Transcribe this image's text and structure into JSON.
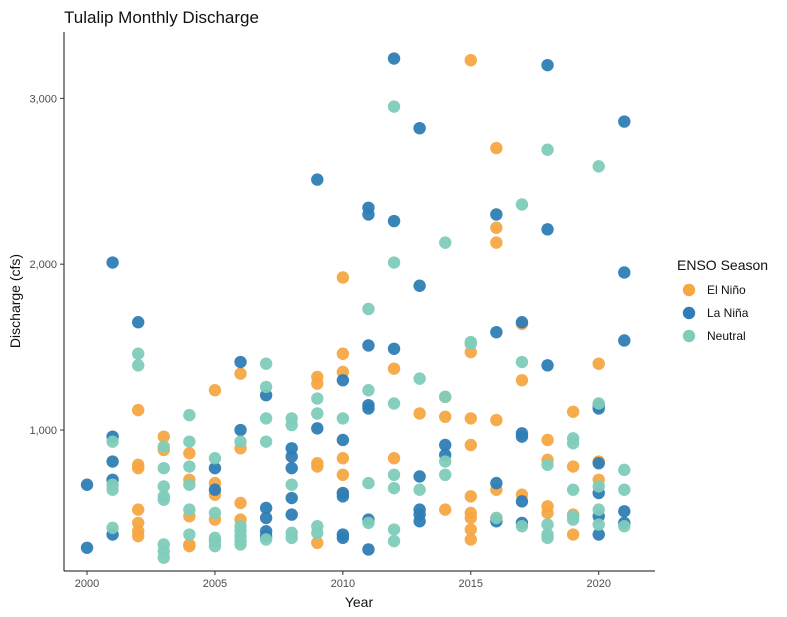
{
  "chart_data": {
    "type": "scatter",
    "title": "Tulalip Monthly Discharge",
    "xlabel": "Year",
    "ylabel": "Discharge (cfs)",
    "xlim": [
      1999.1,
      2022.2
    ],
    "ylim": [
      150,
      3400
    ],
    "xticks": [
      2000,
      2005,
      2010,
      2015,
      2020
    ],
    "xtick_labels": [
      "2000",
      "2005",
      "2010",
      "2015",
      "2020"
    ],
    "yticks": [
      1000,
      2000,
      3000
    ],
    "ytick_labels": [
      "1,000",
      "2,000",
      "3,000"
    ],
    "grid": false,
    "legend": {
      "title": "ENSO Season",
      "position": "right"
    },
    "series": [
      {
        "name": "El Niño",
        "color": "#F5A742",
        "points": [
          [
            2002,
            1120
          ],
          [
            2002,
            790
          ],
          [
            2002,
            770
          ],
          [
            2002,
            520
          ],
          [
            2002,
            440
          ],
          [
            2002,
            390
          ],
          [
            2002,
            360
          ],
          [
            2003,
            960
          ],
          [
            2003,
            880
          ],
          [
            2004,
            860
          ],
          [
            2004,
            700
          ],
          [
            2004,
            480
          ],
          [
            2004,
            310
          ],
          [
            2004,
            300
          ],
          [
            2005,
            1240
          ],
          [
            2005,
            680
          ],
          [
            2005,
            610
          ],
          [
            2005,
            460
          ],
          [
            2006,
            1340
          ],
          [
            2006,
            890
          ],
          [
            2006,
            560
          ],
          [
            2006,
            460
          ],
          [
            2009,
            1320
          ],
          [
            2009,
            1280
          ],
          [
            2009,
            800
          ],
          [
            2009,
            780
          ],
          [
            2009,
            320
          ],
          [
            2010,
            1920
          ],
          [
            2010,
            1460
          ],
          [
            2010,
            1350
          ],
          [
            2010,
            830
          ],
          [
            2010,
            730
          ],
          [
            2010,
            620
          ],
          [
            2012,
            1370
          ],
          [
            2012,
            830
          ],
          [
            2013,
            1100
          ],
          [
            2014,
            1200
          ],
          [
            2014,
            1080
          ],
          [
            2014,
            520
          ],
          [
            2015,
            3230
          ],
          [
            2015,
            1470
          ],
          [
            2015,
            1070
          ],
          [
            2015,
            910
          ],
          [
            2015,
            600
          ],
          [
            2015,
            500
          ],
          [
            2015,
            470
          ],
          [
            2015,
            400
          ],
          [
            2015,
            340
          ],
          [
            2016,
            2700
          ],
          [
            2016,
            2220
          ],
          [
            2016,
            2130
          ],
          [
            2016,
            1060
          ],
          [
            2016,
            640
          ],
          [
            2016,
            470
          ],
          [
            2017,
            1640
          ],
          [
            2017,
            1300
          ],
          [
            2017,
            610
          ],
          [
            2018,
            940
          ],
          [
            2018,
            820
          ],
          [
            2018,
            540
          ],
          [
            2018,
            500
          ],
          [
            2019,
            1110
          ],
          [
            2019,
            780
          ],
          [
            2019,
            490
          ],
          [
            2019,
            370
          ],
          [
            2020,
            1400
          ],
          [
            2020,
            810
          ],
          [
            2020,
            700
          ]
        ]
      },
      {
        "name": "La Niña",
        "color": "#2E7DB5",
        "points": [
          [
            2000,
            670
          ],
          [
            2000,
            290
          ],
          [
            2001,
            2010
          ],
          [
            2001,
            960
          ],
          [
            2001,
            810
          ],
          [
            2001,
            700
          ],
          [
            2001,
            370
          ],
          [
            2002,
            1650
          ],
          [
            2005,
            770
          ],
          [
            2005,
            640
          ],
          [
            2006,
            1410
          ],
          [
            2006,
            1000
          ],
          [
            2007,
            1210
          ],
          [
            2007,
            530
          ],
          [
            2007,
            470
          ],
          [
            2007,
            390
          ],
          [
            2007,
            360
          ],
          [
            2008,
            890
          ],
          [
            2008,
            840
          ],
          [
            2008,
            770
          ],
          [
            2008,
            590
          ],
          [
            2008,
            490
          ],
          [
            2009,
            2510
          ],
          [
            2009,
            1010
          ],
          [
            2010,
            1300
          ],
          [
            2010,
            940
          ],
          [
            2010,
            620
          ],
          [
            2010,
            600
          ],
          [
            2010,
            370
          ],
          [
            2010,
            350
          ],
          [
            2011,
            2340
          ],
          [
            2011,
            2300
          ],
          [
            2011,
            1510
          ],
          [
            2011,
            1150
          ],
          [
            2011,
            1130
          ],
          [
            2011,
            460
          ],
          [
            2011,
            280
          ],
          [
            2012,
            3240
          ],
          [
            2012,
            2260
          ],
          [
            2012,
            1490
          ],
          [
            2013,
            2820
          ],
          [
            2013,
            1870
          ],
          [
            2013,
            720
          ],
          [
            2013,
            520
          ],
          [
            2013,
            490
          ],
          [
            2013,
            450
          ],
          [
            2014,
            910
          ],
          [
            2014,
            850
          ],
          [
            2016,
            2300
          ],
          [
            2016,
            1590
          ],
          [
            2016,
            680
          ],
          [
            2016,
            450
          ],
          [
            2017,
            1650
          ],
          [
            2017,
            980
          ],
          [
            2017,
            960
          ],
          [
            2017,
            570
          ],
          [
            2017,
            440
          ],
          [
            2018,
            3200
          ],
          [
            2018,
            2210
          ],
          [
            2018,
            1390
          ],
          [
            2020,
            1150
          ],
          [
            2020,
            1130
          ],
          [
            2020,
            800
          ],
          [
            2020,
            620
          ],
          [
            2020,
            480
          ],
          [
            2020,
            370
          ],
          [
            2021,
            2860
          ],
          [
            2021,
            1950
          ],
          [
            2021,
            1540
          ],
          [
            2021,
            510
          ],
          [
            2021,
            440
          ]
        ]
      },
      {
        "name": "Neutral",
        "color": "#7FCCBA",
        "points": [
          [
            2001,
            930
          ],
          [
            2001,
            670
          ],
          [
            2001,
            640
          ],
          [
            2001,
            410
          ],
          [
            2002,
            1460
          ],
          [
            2002,
            1390
          ],
          [
            2003,
            900
          ],
          [
            2003,
            770
          ],
          [
            2003,
            660
          ],
          [
            2003,
            600
          ],
          [
            2003,
            580
          ],
          [
            2003,
            310
          ],
          [
            2003,
            270
          ],
          [
            2003,
            230
          ],
          [
            2004,
            1090
          ],
          [
            2004,
            930
          ],
          [
            2004,
            780
          ],
          [
            2004,
            670
          ],
          [
            2004,
            520
          ],
          [
            2004,
            370
          ],
          [
            2005,
            830
          ],
          [
            2005,
            500
          ],
          [
            2005,
            350
          ],
          [
            2005,
            330
          ],
          [
            2005,
            300
          ],
          [
            2006,
            930
          ],
          [
            2006,
            420
          ],
          [
            2006,
            390
          ],
          [
            2006,
            360
          ],
          [
            2006,
            330
          ],
          [
            2006,
            310
          ],
          [
            2007,
            1400
          ],
          [
            2007,
            1260
          ],
          [
            2007,
            1070
          ],
          [
            2007,
            930
          ],
          [
            2007,
            340
          ],
          [
            2008,
            1070
          ],
          [
            2008,
            1030
          ],
          [
            2008,
            670
          ],
          [
            2008,
            380
          ],
          [
            2008,
            350
          ],
          [
            2009,
            1190
          ],
          [
            2009,
            1100
          ],
          [
            2009,
            420
          ],
          [
            2009,
            380
          ],
          [
            2010,
            1070
          ],
          [
            2011,
            1730
          ],
          [
            2011,
            1240
          ],
          [
            2011,
            680
          ],
          [
            2011,
            440
          ],
          [
            2012,
            2950
          ],
          [
            2012,
            2010
          ],
          [
            2012,
            1160
          ],
          [
            2012,
            730
          ],
          [
            2012,
            650
          ],
          [
            2012,
            400
          ],
          [
            2012,
            330
          ],
          [
            2013,
            1310
          ],
          [
            2013,
            640
          ],
          [
            2014,
            2130
          ],
          [
            2014,
            1200
          ],
          [
            2014,
            810
          ],
          [
            2014,
            730
          ],
          [
            2015,
            1530
          ],
          [
            2015,
            1520
          ],
          [
            2016,
            470
          ],
          [
            2017,
            2360
          ],
          [
            2017,
            1410
          ],
          [
            2017,
            420
          ],
          [
            2018,
            2690
          ],
          [
            2018,
            790
          ],
          [
            2018,
            430
          ],
          [
            2018,
            370
          ],
          [
            2018,
            350
          ],
          [
            2019,
            950
          ],
          [
            2019,
            920
          ],
          [
            2019,
            640
          ],
          [
            2019,
            480
          ],
          [
            2019,
            460
          ],
          [
            2020,
            2590
          ],
          [
            2020,
            1160
          ],
          [
            2020,
            660
          ],
          [
            2020,
            520
          ],
          [
            2020,
            430
          ],
          [
            2021,
            760
          ],
          [
            2021,
            640
          ],
          [
            2021,
            420
          ]
        ]
      }
    ]
  }
}
